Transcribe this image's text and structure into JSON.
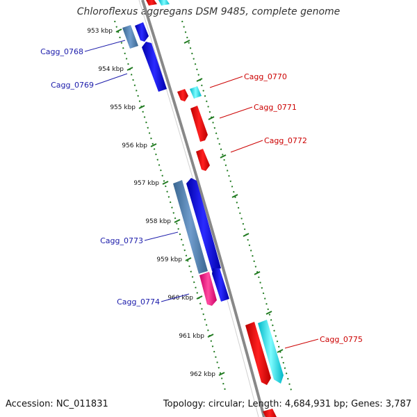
{
  "title": "Chloroflexus aggregans DSM 9485, complete genome",
  "footer": {
    "accession": "Accession: NC_011831",
    "summary": "Topology: circular; Length: 4,684,931 bp; Genes: 3,787"
  },
  "colors": {
    "backbone": "#888888",
    "tick_green": "#1f7a1f",
    "gene_blue": "#0000dd",
    "gene_steel": "#4d7fae",
    "gene_red": "#ee0000",
    "gene_cyan": "#00e5ee",
    "gene_pink": "#ee1177",
    "label_blue": "#1a1aaa",
    "label_red": "#cc0000"
  },
  "ticks": [
    {
      "label": "953 kbp"
    },
    {
      "label": "954 kbp"
    },
    {
      "label": "955 kbp"
    },
    {
      "label": "956 kbp"
    },
    {
      "label": "957 kbp"
    },
    {
      "label": "958 kbp"
    },
    {
      "label": "959 kbp"
    },
    {
      "label": "960 kbp"
    },
    {
      "label": "961 kbp"
    },
    {
      "label": "962 kbp"
    }
  ],
  "gene_labels": [
    {
      "name": "Cagg_0768",
      "strand": "minus"
    },
    {
      "name": "Cagg_0769",
      "strand": "minus"
    },
    {
      "name": "Cagg_0770",
      "strand": "plus"
    },
    {
      "name": "Cagg_0771",
      "strand": "plus"
    },
    {
      "name": "Cagg_0772",
      "strand": "plus"
    },
    {
      "name": "Cagg_0773",
      "strand": "minus"
    },
    {
      "name": "Cagg_0774",
      "strand": "minus"
    },
    {
      "name": "Cagg_0775",
      "strand": "plus"
    }
  ]
}
